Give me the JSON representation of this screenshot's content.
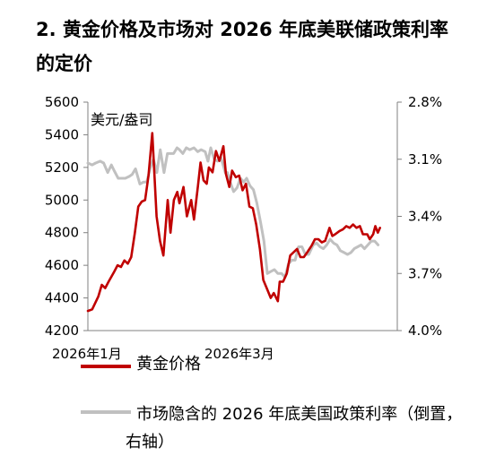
{
  "title": "2. 黄金价格及市场对 2026 年底美联储政策利率的定价",
  "chart_data": {
    "type": "line",
    "unit_label": "美元/盎司",
    "x_tick_labels": [
      "2026年1月",
      "2026年3月"
    ],
    "left_axis": {
      "ylim": [
        4200,
        5600
      ],
      "ticks": [
        "4200",
        "4400",
        "4600",
        "4800",
        "5000",
        "5200",
        "5400",
        "5600"
      ]
    },
    "right_axis": {
      "ylim": [
        2.8,
        4.0
      ],
      "inverted": true,
      "ticks": [
        "2.8%",
        "3.1%",
        "3.4%",
        "3.7%",
        "4.0%"
      ]
    },
    "x_range": [
      0,
      100
    ],
    "series": [
      {
        "name": "黄金价格",
        "axis": "left",
        "color": "#c00000",
        "x": [
          0,
          1.4,
          3.4,
          4.5,
          5.6,
          6.7,
          7.6,
          8.5,
          9.6,
          10.7,
          11.8,
          12.9,
          14,
          15.2,
          16.3,
          17.4,
          18.5,
          19.6,
          20.8,
          22.2,
          23.3,
          24.4,
          25.8,
          26.7,
          27.8,
          28.9,
          29.6,
          30.9,
          32,
          33.4,
          34.3,
          35.6,
          36.4,
          37.4,
          38.4,
          39.1,
          40.3,
          41.4,
          42.5,
          43.8,
          44.6,
          45.7,
          46.6,
          47.8,
          48.9,
          50,
          51.1,
          52.2,
          53.3,
          54.4,
          55.6,
          56.7,
          57.8,
          59.1,
          60.1,
          61.4,
          62,
          63.1,
          64.3,
          65.4,
          66.5,
          67.6,
          68.7,
          69.8,
          70.9,
          72.3,
          73.4,
          74.5,
          75.6,
          76.7,
          78.1,
          79,
          79.9,
          81.3,
          82.4,
          83.5,
          84.6,
          85.7,
          86.8,
          87.9,
          88.9,
          90.3,
          91.1,
          92.2,
          92.9,
          93.7,
          94.4
        ],
        "values": [
          4320,
          4330,
          4410,
          4480,
          4460,
          4500,
          4530,
          4560,
          4600,
          4590,
          4630,
          4610,
          4650,
          4800,
          4960,
          4990,
          5000,
          5150,
          5410,
          4900,
          4750,
          4660,
          5000,
          4800,
          5000,
          5050,
          4980,
          5080,
          4900,
          5000,
          4880,
          5090,
          5230,
          5120,
          5100,
          5200,
          5170,
          5300,
          5240,
          5330,
          5160,
          5080,
          5180,
          5140,
          5150,
          5060,
          5100,
          4960,
          4950,
          4850,
          4700,
          4510,
          4460,
          4400,
          4430,
          4380,
          4500,
          4500,
          4550,
          4660,
          4680,
          4700,
          4650,
          4650,
          4680,
          4720,
          4760,
          4760,
          4740,
          4750,
          4830,
          4780,
          4790,
          4810,
          4820,
          4840,
          4830,
          4850,
          4830,
          4840,
          4790,
          4790,
          4760,
          4790,
          4840,
          4800,
          4830
        ]
      },
      {
        "name": "市场隐含的 2026 年底美国政策利率（倒置，右轴）",
        "axis": "right",
        "color": "#c0c0c0",
        "x": [
          0,
          1.4,
          2.5,
          4,
          5.1,
          6.4,
          7.6,
          8.5,
          9.8,
          10.9,
          12.1,
          13.4,
          14.3,
          15.4,
          16.8,
          17.9,
          19,
          20.1,
          21.2,
          22.3,
          23.4,
          24.6,
          25.7,
          26.8,
          27.7,
          28.8,
          29.6,
          30.7,
          31.8,
          32.9,
          34.3,
          35.5,
          36.6,
          37.9,
          38.8,
          39.7,
          40.8,
          41.9,
          43,
          44.4,
          45.1,
          46,
          47.1,
          48.2,
          49.3,
          50.4,
          51.3,
          52.4,
          53.5,
          54.6,
          55.8,
          56.9,
          58,
          59.1,
          60.3,
          61.4,
          62.6,
          63.7,
          64.8,
          65.9,
          67,
          68.1,
          69.2,
          70.3,
          71.4,
          72.8,
          73.9,
          75,
          76.1,
          77.2,
          78.3,
          79.4,
          80.5,
          81.6,
          82.8,
          83.9,
          85,
          86.1,
          87.2,
          88.3,
          89.4,
          90.5,
          91.6,
          92.7,
          93.8
        ],
        "values": [
          3.12,
          3.13,
          3.12,
          3.11,
          3.12,
          3.17,
          3.13,
          3.16,
          3.2,
          3.2,
          3.2,
          3.19,
          3.18,
          3.15,
          3.23,
          3.22,
          3.22,
          3.15,
          3.1,
          3.17,
          3.05,
          3.17,
          3.07,
          3.07,
          3.07,
          3.04,
          3.05,
          3.07,
          3.04,
          3.05,
          3.04,
          3.06,
          3.05,
          3.06,
          3.11,
          3.04,
          3.1,
          3.11,
          3.09,
          3.17,
          3.17,
          3.22,
          3.27,
          3.25,
          3.2,
          3.22,
          3.2,
          3.24,
          3.26,
          3.33,
          3.43,
          3.53,
          3.7,
          3.69,
          3.68,
          3.7,
          3.7,
          3.72,
          3.65,
          3.63,
          3.63,
          3.56,
          3.56,
          3.6,
          3.6,
          3.55,
          3.54,
          3.56,
          3.57,
          3.55,
          3.52,
          3.54,
          3.55,
          3.58,
          3.59,
          3.6,
          3.59,
          3.57,
          3.56,
          3.55,
          3.57,
          3.55,
          3.53,
          3.53,
          3.55
        ]
      }
    ]
  }
}
